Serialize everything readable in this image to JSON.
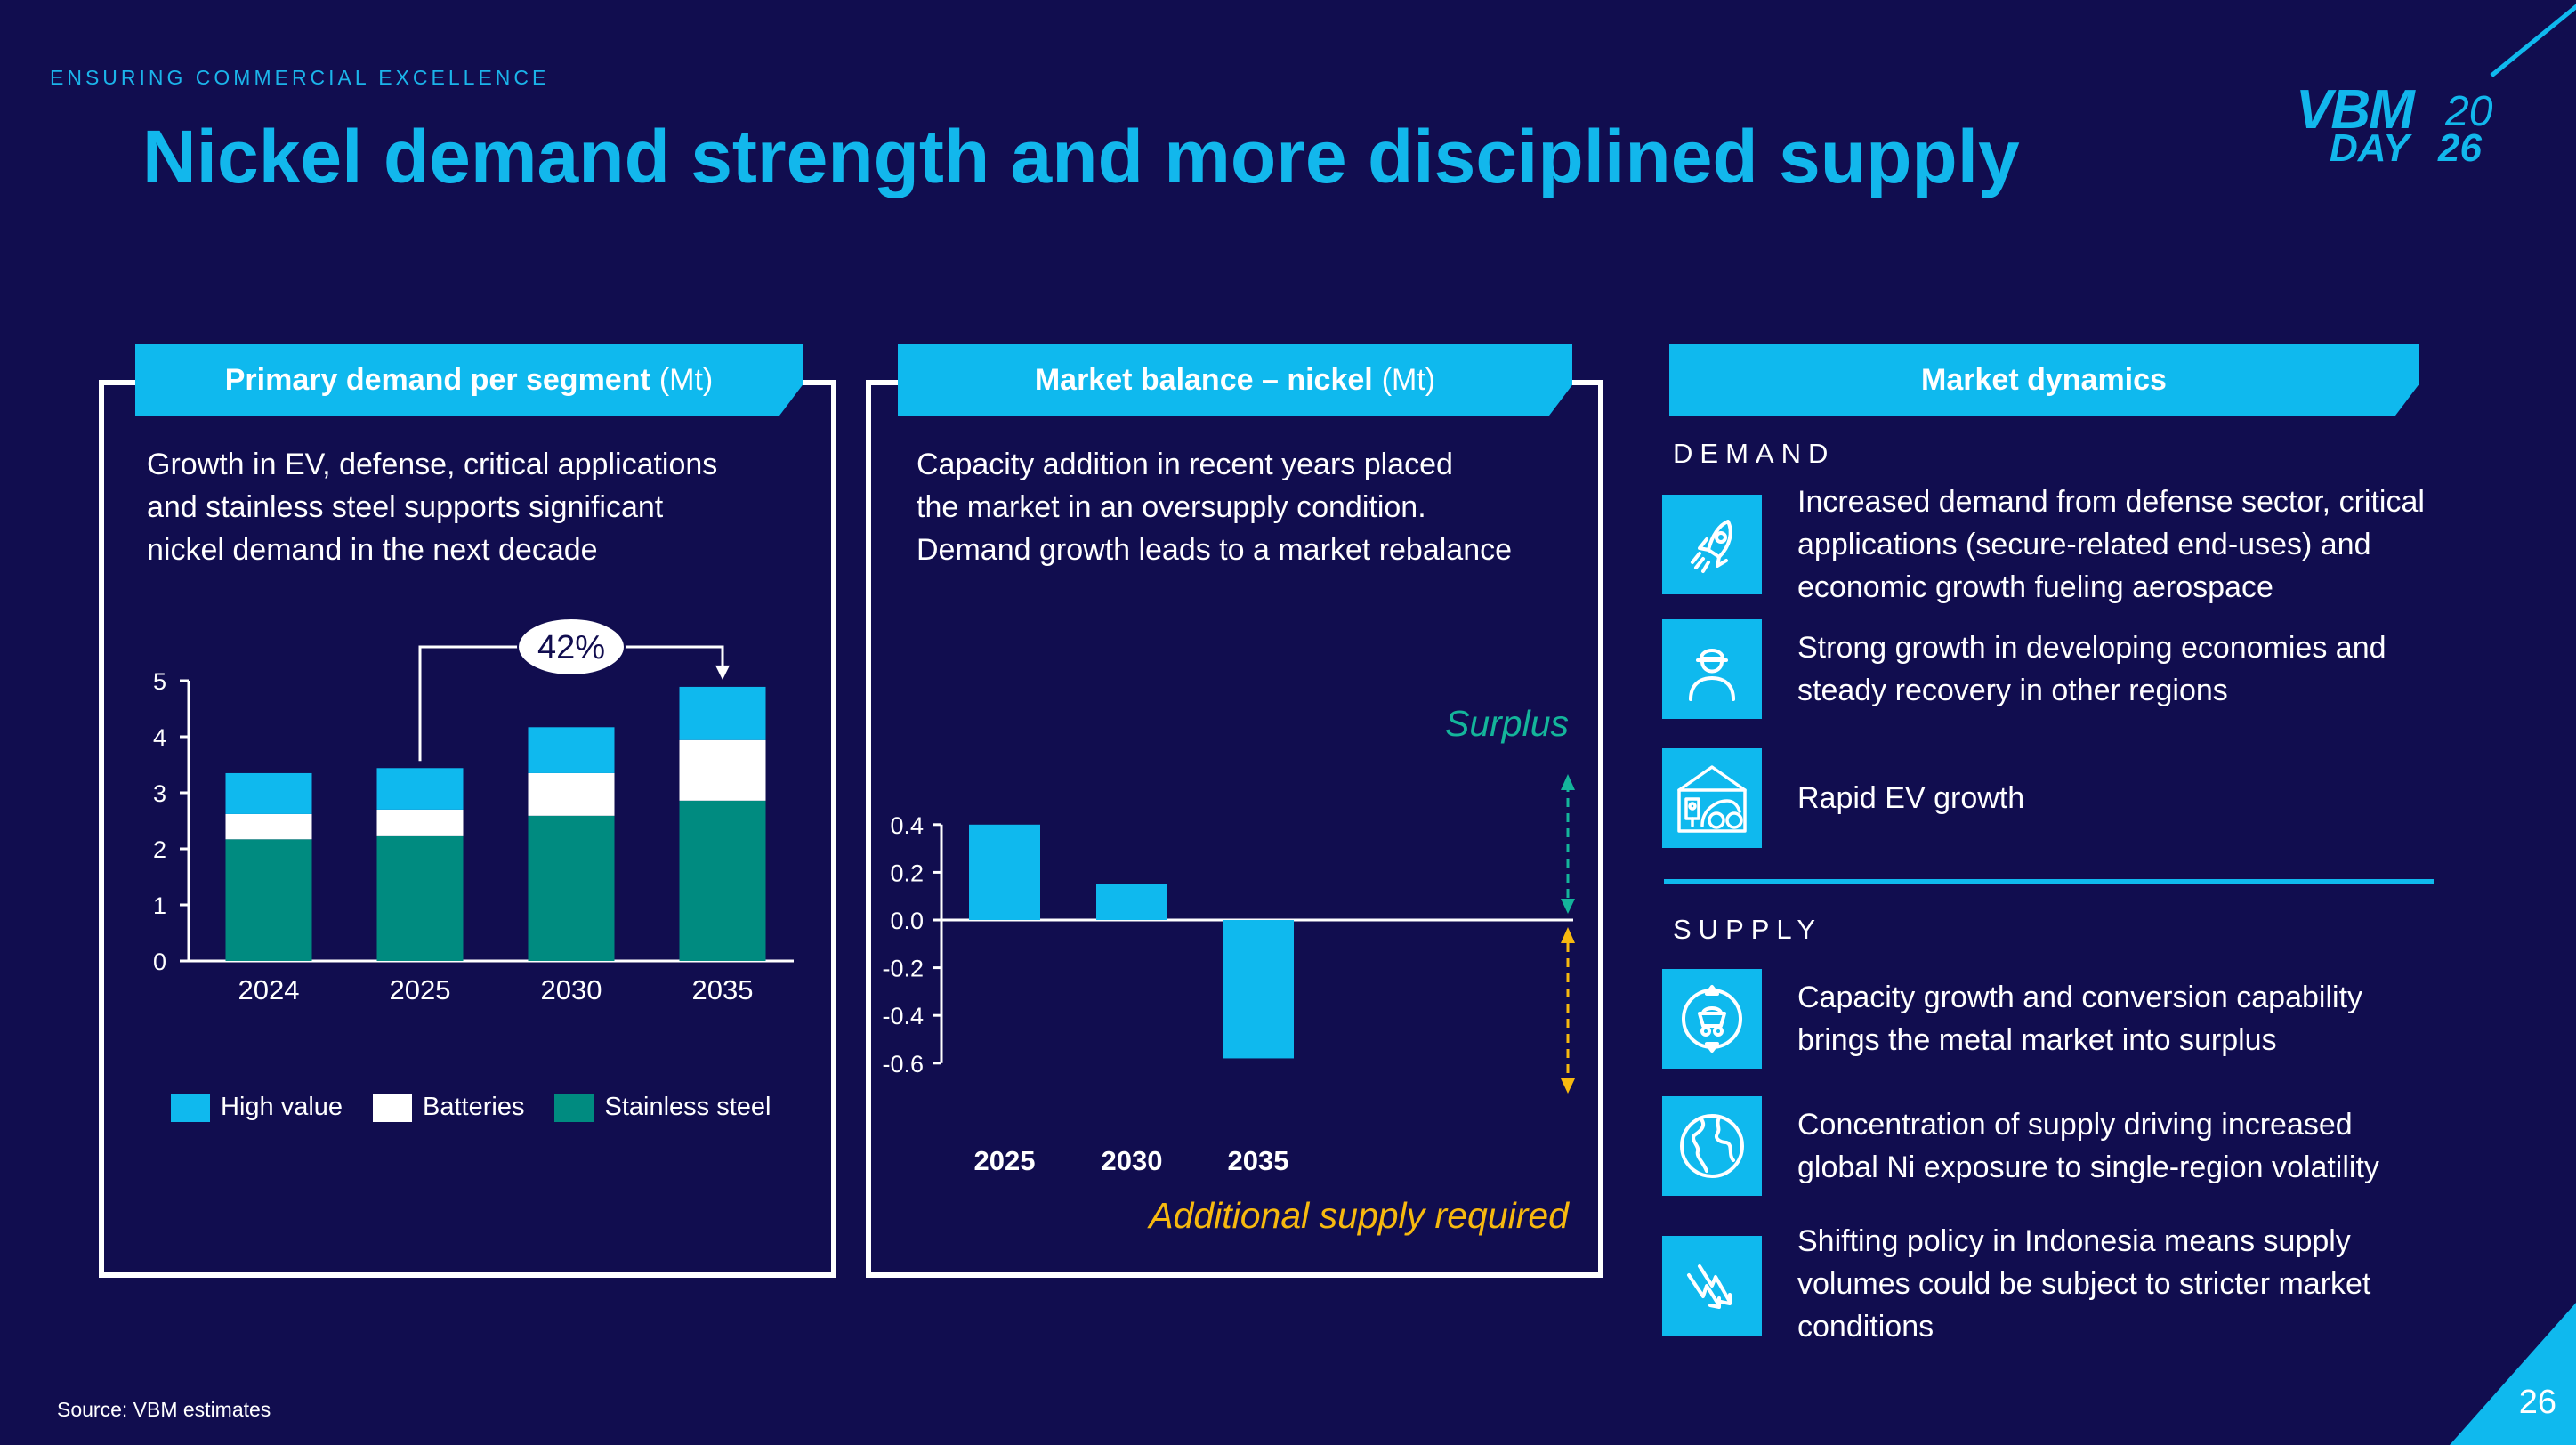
{
  "header": {
    "kicker": "ENSURING COMMERCIAL EXCELLENCE",
    "title": "Nickel demand strength and more disciplined supply",
    "logo": {
      "line1": "VBM",
      "line1_suffix": "20",
      "line2": "DAY",
      "line2_suffix": "26"
    }
  },
  "colors": {
    "background": "#110d4f",
    "accent": "#0fb9ee",
    "high_value": "#0fb9ee",
    "batteries": "#ffffff",
    "stainless_steel": "#008b80",
    "surplus": "#14b59b",
    "additional_supply": "#f7b90f"
  },
  "panels": {
    "demand": {
      "title": "Primary demand per segment",
      "unit": "(Mt)",
      "description": [
        "Growth in EV, defense, critical applications",
        "and stainless steel supports significant",
        "nickel demand in the next decade"
      ],
      "growth_callout": "42%"
    },
    "balance": {
      "title": "Market balance – nickel",
      "unit": "(Mt)",
      "description": [
        "Capacity addition in recent years placed",
        "the market in an oversupply condition.",
        "Demand growth leads to a market rebalance"
      ],
      "surplus_label": "Surplus",
      "deficit_label": "Additional supply required"
    },
    "dynamics": {
      "title": "Market dynamics",
      "demand_label": "DEMAND",
      "supply_label": "SUPPLY",
      "demand_items": [
        {
          "icon": "rocket-icon",
          "text": [
            "Increased demand from defense sector, critical",
            "applications (secure-related end-uses) and",
            "economic growth fueling aerospace"
          ]
        },
        {
          "icon": "worker-icon",
          "text": [
            "Strong growth in developing economies and",
            "steady recovery in other regions"
          ]
        },
        {
          "icon": "ev-charging-icon",
          "text": [
            "Rapid EV growth"
          ]
        }
      ],
      "supply_items": [
        {
          "icon": "mine-cart-cycle-icon",
          "text": [
            "Capacity growth and conversion capability",
            "brings the metal market into surplus"
          ]
        },
        {
          "icon": "globe-icon",
          "text": [
            "Concentration of supply driving increased",
            "global Ni exposure to single-region volatility"
          ]
        },
        {
          "icon": "volatility-arrow-icon",
          "text": [
            "Shifting policy in Indonesia means supply",
            "volumes could be subject to stricter market",
            "conditions"
          ]
        }
      ]
    }
  },
  "footer": {
    "source": "Source: VBM estimates",
    "page_number": "26"
  },
  "chart_data": [
    {
      "type": "bar",
      "stacked": true,
      "title": "Primary demand per segment (Mt)",
      "xlabel": "",
      "ylabel": "",
      "categories": [
        "2024",
        "2025",
        "2030",
        "2035"
      ],
      "series": [
        {
          "name": "Stainless steel",
          "values": [
            2.17,
            2.24,
            2.59,
            2.86
          ]
        },
        {
          "name": "Batteries",
          "values": [
            0.45,
            0.46,
            0.76,
            1.08
          ]
        },
        {
          "name": "High value",
          "values": [
            0.73,
            0.74,
            0.82,
            0.95
          ]
        }
      ],
      "ylim": [
        0,
        5
      ],
      "yticks": [
        "0",
        "1",
        "2",
        "3",
        "4",
        "5"
      ],
      "grid": false,
      "legend": "bottom",
      "legend_order": [
        "High value",
        "Batteries",
        "Stainless steel"
      ],
      "annotations": [
        {
          "text": "42%",
          "from": "2025",
          "to": "2035"
        }
      ]
    },
    {
      "type": "bar",
      "title": "Market balance – nickel (Mt)",
      "xlabel": "",
      "ylabel": "",
      "categories": [
        "2025",
        "2030",
        "2035"
      ],
      "values": [
        0.4,
        0.15,
        -0.58
      ],
      "ylim": [
        -0.6,
        0.4
      ],
      "yticks": [
        "0.4",
        "0.2",
        "0.0",
        "-0.2",
        "-0.4",
        "-0.6"
      ],
      "grid": false,
      "annotations": [
        {
          "text": "Surplus",
          "direction": "up"
        },
        {
          "text": "Additional supply required",
          "direction": "down"
        }
      ]
    }
  ]
}
